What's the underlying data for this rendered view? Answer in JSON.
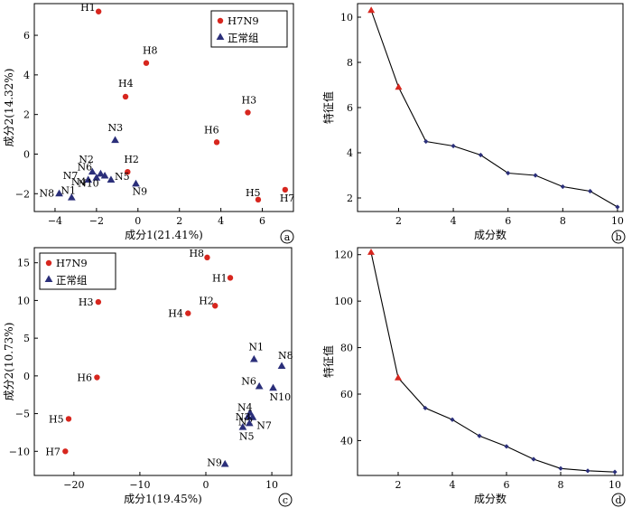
{
  "colors": {
    "h7n9_marker": "#d7261e",
    "normal_marker": "#2b2f7a",
    "scree_triangle": "#d7261e",
    "scree_diamond": "#2b2f7a",
    "line": "#000000"
  },
  "chart_data": [
    {
      "panel": "a",
      "type": "scatter",
      "xlabel": "成分1(21.41%)",
      "ylabel": "成分2(14.32%)",
      "xlim": [
        -5,
        7.5
      ],
      "ylim": [
        -2.9,
        7.6
      ],
      "xticks": [
        -4,
        -2,
        0,
        2,
        4,
        6
      ],
      "yticks": [
        -2,
        0,
        2,
        4,
        6
      ],
      "legend": {
        "position": "top-right",
        "entries": [
          "H7N9",
          "正常组"
        ]
      },
      "series": [
        {
          "name": "H7N9",
          "marker": "circle",
          "points": [
            {
              "label": "H1",
              "x": -1.9,
              "y": 7.2
            },
            {
              "label": "H8",
              "x": 0.4,
              "y": 4.6
            },
            {
              "label": "H4",
              "x": -0.6,
              "y": 2.9
            },
            {
              "label": "H3",
              "x": 5.3,
              "y": 2.1
            },
            {
              "label": "H6",
              "x": 3.8,
              "y": 0.6
            },
            {
              "label": "H2",
              "x": -0.5,
              "y": -0.9
            },
            {
              "label": "H7",
              "x": 7.1,
              "y": -1.8
            },
            {
              "label": "H5",
              "x": 5.8,
              "y": -2.3
            }
          ]
        },
        {
          "name": "正常组",
          "marker": "triangle",
          "points": [
            {
              "label": "N3",
              "x": -1.1,
              "y": 0.7
            },
            {
              "label": "N2",
              "x": -2.2,
              "y": -0.9
            },
            {
              "label": "N5",
              "x": -1.3,
              "y": -1.3
            },
            {
              "label": "N9",
              "x": -0.1,
              "y": -1.5
            },
            {
              "label": "N4",
              "x": -2.0,
              "y": -1.2
            },
            {
              "label": "N6",
              "x": -1.8,
              "y": -1.0
            },
            {
              "label": "N7",
              "x": -2.4,
              "y": -1.3
            },
            {
              "label": "N10",
              "x": -1.6,
              "y": -1.1
            },
            {
              "label": "N1",
              "x": -3.2,
              "y": -2.2
            },
            {
              "label": "N8",
              "x": -3.8,
              "y": -2.0
            }
          ]
        }
      ]
    },
    {
      "panel": "b",
      "type": "line",
      "xlabel": "成分数",
      "ylabel": "特征值",
      "xlim": [
        0.5,
        10.2
      ],
      "ylim": [
        1.4,
        10.6
      ],
      "xticks": [
        2,
        4,
        6,
        8,
        10
      ],
      "yticks": [
        2,
        4,
        6,
        8,
        10
      ],
      "x": [
        1,
        2,
        3,
        4,
        5,
        6,
        7,
        8,
        9,
        10
      ],
      "values": [
        10.3,
        6.9,
        4.5,
        4.3,
        3.9,
        3.1,
        3.0,
        2.5,
        2.3,
        1.6
      ],
      "highlight_count": 2
    },
    {
      "panel": "c",
      "type": "scatter",
      "xlabel": "成分1(19.45%)",
      "ylabel": "成分2(10.73%)",
      "xlim": [
        -26,
        13
      ],
      "ylim": [
        -13.2,
        17
      ],
      "xticks": [
        -20,
        -10,
        0,
        10
      ],
      "yticks": [
        -10,
        -5,
        0,
        5,
        10,
        15
      ],
      "legend": {
        "position": "top-left",
        "entries": [
          "H7N9",
          "正常组"
        ]
      },
      "series": [
        {
          "name": "H7N9",
          "marker": "circle",
          "points": [
            {
              "label": "H8",
              "x": 0.2,
              "y": 15.7
            },
            {
              "label": "H1",
              "x": 3.7,
              "y": 13.0
            },
            {
              "label": "H3",
              "x": -16.3,
              "y": 9.8
            },
            {
              "label": "H2",
              "x": 1.4,
              "y": 9.3
            },
            {
              "label": "H4",
              "x": -2.7,
              "y": 8.3
            },
            {
              "label": "H6",
              "x": -16.5,
              "y": -0.2
            },
            {
              "label": "H5",
              "x": -20.8,
              "y": -5.7
            },
            {
              "label": "H7",
              "x": -21.3,
              "y": -10.0
            }
          ]
        },
        {
          "name": "正常组",
          "marker": "triangle",
          "points": [
            {
              "label": "N1",
              "x": 7.3,
              "y": 2.2
            },
            {
              "label": "N8",
              "x": 11.5,
              "y": 1.3
            },
            {
              "label": "N6",
              "x": 8.1,
              "y": -1.4
            },
            {
              "label": "N10",
              "x": 10.2,
              "y": -1.6
            },
            {
              "label": "N4",
              "x": 6.7,
              "y": -4.9
            },
            {
              "label": "N3",
              "x": 6.4,
              "y": -5.4
            },
            {
              "label": "N2",
              "x": 7.1,
              "y": -5.5
            },
            {
              "label": "N7",
              "x": 6.6,
              "y": -6.3
            },
            {
              "label": "N5",
              "x": 5.6,
              "y": -6.8
            },
            {
              "label": "N9",
              "x": 2.9,
              "y": -11.7
            }
          ]
        }
      ]
    },
    {
      "panel": "d",
      "type": "line",
      "xlabel": "成分数",
      "ylabel": "特征值",
      "xlim": [
        0.5,
        10.3
      ],
      "ylim": [
        25,
        123
      ],
      "xticks": [
        2,
        4,
        6,
        8,
        10
      ],
      "yticks": [
        40,
        60,
        80,
        100,
        120
      ],
      "x": [
        1,
        2,
        3,
        4,
        5,
        6,
        7,
        8,
        9,
        10
      ],
      "values": [
        121,
        67,
        54,
        49,
        42,
        37.5,
        32,
        28,
        27,
        26.5
      ],
      "highlight_count": 2
    }
  ]
}
